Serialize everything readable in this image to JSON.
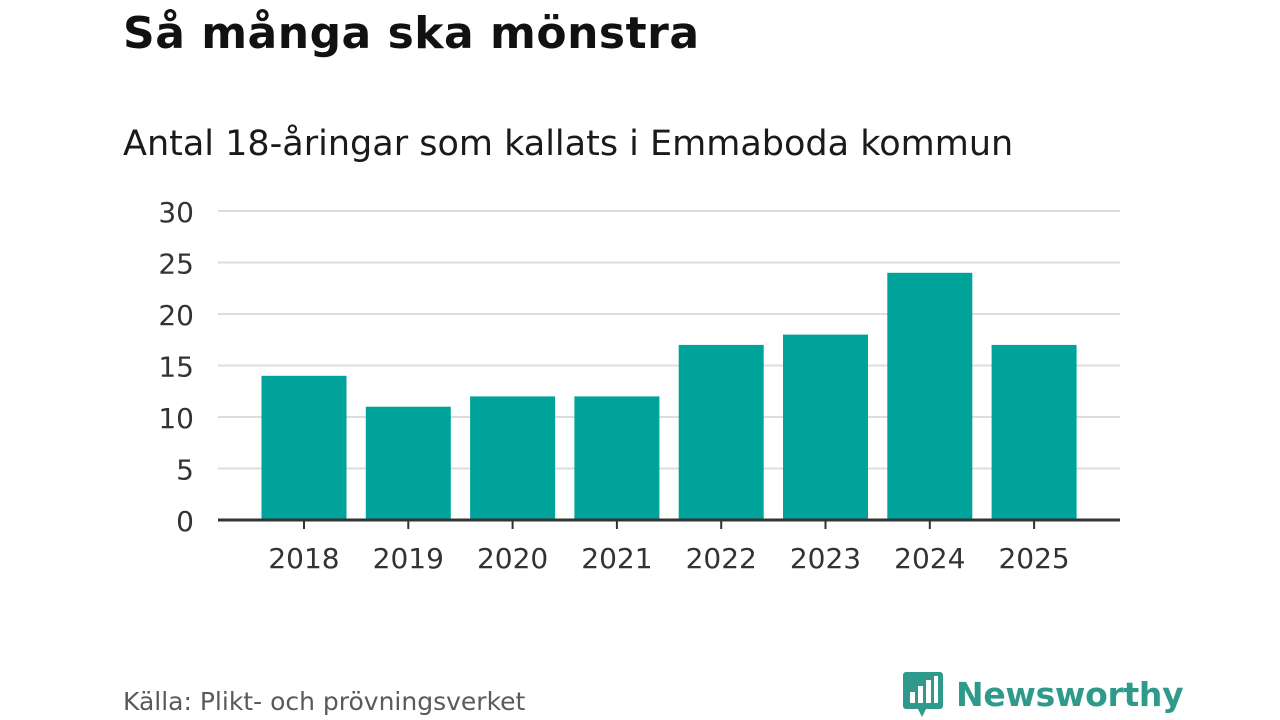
{
  "header": {
    "title": "Så många ska mönstra",
    "subtitle": "Antal 18-åringar som kallats i Emmaboda kommun"
  },
  "footer": {
    "source": "Källa: Plikt- och prövningsverket",
    "brand": "Newsworthy",
    "brand_icon": "newsworthy-bar-chart-speech-bubble-icon"
  },
  "colors": {
    "bar": "#00a39a",
    "grid": "#dddddd",
    "axis": "#333333",
    "brand": "#2f9a8c"
  },
  "chart_data": {
    "type": "bar",
    "categories": [
      "2018",
      "2019",
      "2020",
      "2021",
      "2022",
      "2023",
      "2024",
      "2025"
    ],
    "values": [
      14,
      11,
      12,
      12,
      17,
      18,
      24,
      17
    ],
    "ylim": [
      0,
      30
    ],
    "yticks": [
      0,
      5,
      10,
      15,
      20,
      25,
      30
    ],
    "grid": true,
    "legend": "none"
  }
}
